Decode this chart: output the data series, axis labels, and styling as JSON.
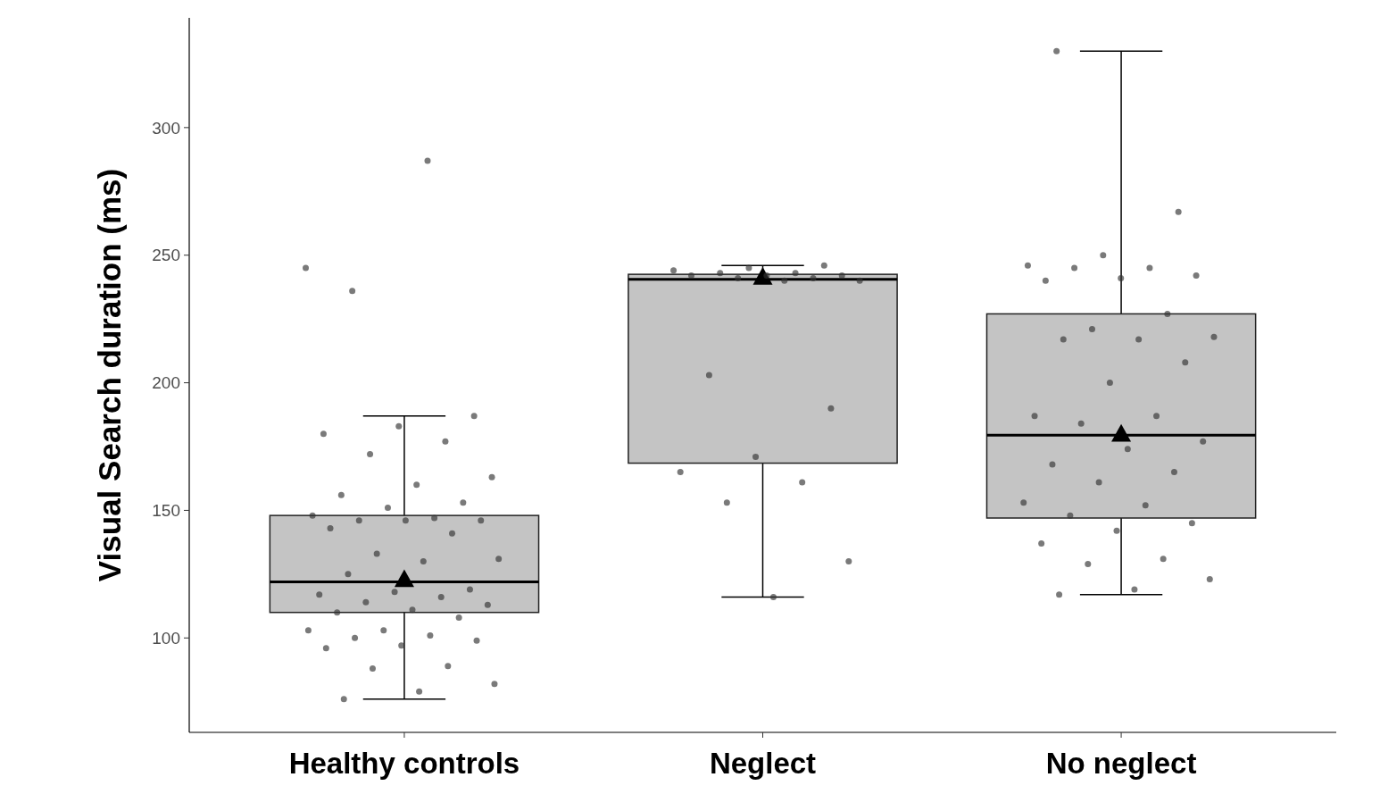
{
  "chart_data": {
    "type": "box",
    "ylabel": "Visual Search duration (ms)",
    "categories": [
      "Healthy controls",
      "Neglect",
      "No neglect"
    ],
    "ylim": [
      63,
      343
    ],
    "yticks": [
      100,
      150,
      200,
      250,
      300
    ],
    "grid": false,
    "color": "#c4c4c4",
    "marker": "circle",
    "boxes": [
      {
        "low": 76,
        "q1": 110,
        "median": 122,
        "q3": 148,
        "high": 187,
        "mean": 123
      },
      {
        "low": 116,
        "q1": 168.5,
        "median": 240.5,
        "q3": 242.5,
        "high": 246,
        "mean": 241.5
      },
      {
        "low": 117,
        "q1": 147,
        "median": 179.5,
        "q3": 227,
        "high": 330,
        "mean": 180
      }
    ],
    "series": [
      {
        "type": "scatter",
        "color": "#333333",
        "x": [
          "Healthy controls",
          "Healthy controls",
          "Healthy controls",
          "Healthy controls",
          "Healthy controls",
          "Healthy controls",
          "Healthy controls",
          "Healthy controls",
          "Healthy controls",
          "Healthy controls",
          "Healthy controls",
          "Healthy controls",
          "Healthy controls",
          "Healthy controls",
          "Healthy controls",
          "Healthy controls",
          "Healthy controls",
          "Healthy controls",
          "Healthy controls",
          "Healthy controls",
          "Healthy controls",
          "Healthy controls",
          "Healthy controls",
          "Healthy controls",
          "Healthy controls",
          "Healthy controls",
          "Healthy controls",
          "Healthy controls",
          "Healthy controls",
          "Healthy controls",
          "Healthy controls",
          "Healthy controls",
          "Healthy controls",
          "Healthy controls",
          "Healthy controls",
          "Healthy controls",
          "Healthy controls",
          "Healthy controls",
          "Healthy controls",
          "Healthy controls",
          "Healthy controls",
          "Healthy controls",
          "Healthy controls",
          "Healthy controls",
          "Healthy controls",
          "Neglect",
          "Neglect",
          "Neglect",
          "Neglect",
          "Neglect",
          "Neglect",
          "Neglect",
          "Neglect",
          "Neglect",
          "Neglect",
          "Neglect",
          "Neglect",
          "Neglect",
          "Neglect",
          "Neglect",
          "Neglect",
          "Neglect",
          "Neglect",
          "Neglect",
          "Neglect",
          "No neglect",
          "No neglect",
          "No neglect",
          "No neglect",
          "No neglect",
          "No neglect",
          "No neglect",
          "No neglect",
          "No neglect",
          "No neglect",
          "No neglect",
          "No neglect",
          "No neglect",
          "No neglect",
          "No neglect",
          "No neglect",
          "No neglect",
          "No neglect",
          "No neglect",
          "No neglect",
          "No neglect",
          "No neglect",
          "No neglect",
          "No neglect",
          "No neglect",
          "No neglect",
          "No neglect",
          "No neglect",
          "No neglect",
          "No neglect",
          "No neglect",
          "No neglect",
          "No neglect",
          "No neglect",
          "No neglect"
        ],
        "values": [
          245,
          287,
          236,
          187,
          183,
          180,
          177,
          172,
          163,
          160,
          156,
          153,
          151,
          148,
          147,
          146,
          146,
          146,
          143,
          141,
          133,
          131,
          130,
          125,
          119,
          118,
          117,
          116,
          114,
          113,
          111,
          110,
          108,
          103,
          103,
          101,
          100,
          99,
          97,
          96,
          89,
          88,
          82,
          79,
          76,
          246,
          245,
          244,
          243,
          243,
          242,
          242,
          242,
          241,
          241,
          240,
          240,
          203,
          190,
          171,
          165,
          161,
          153,
          130,
          116,
          330,
          267,
          250,
          246,
          245,
          245,
          242,
          241,
          240,
          227,
          221,
          218,
          217,
          217,
          208,
          200,
          187,
          187,
          184,
          177,
          174,
          168,
          165,
          161,
          153,
          152,
          148,
          145,
          142,
          137,
          131,
          129,
          123,
          119,
          117
        ]
      }
    ]
  }
}
